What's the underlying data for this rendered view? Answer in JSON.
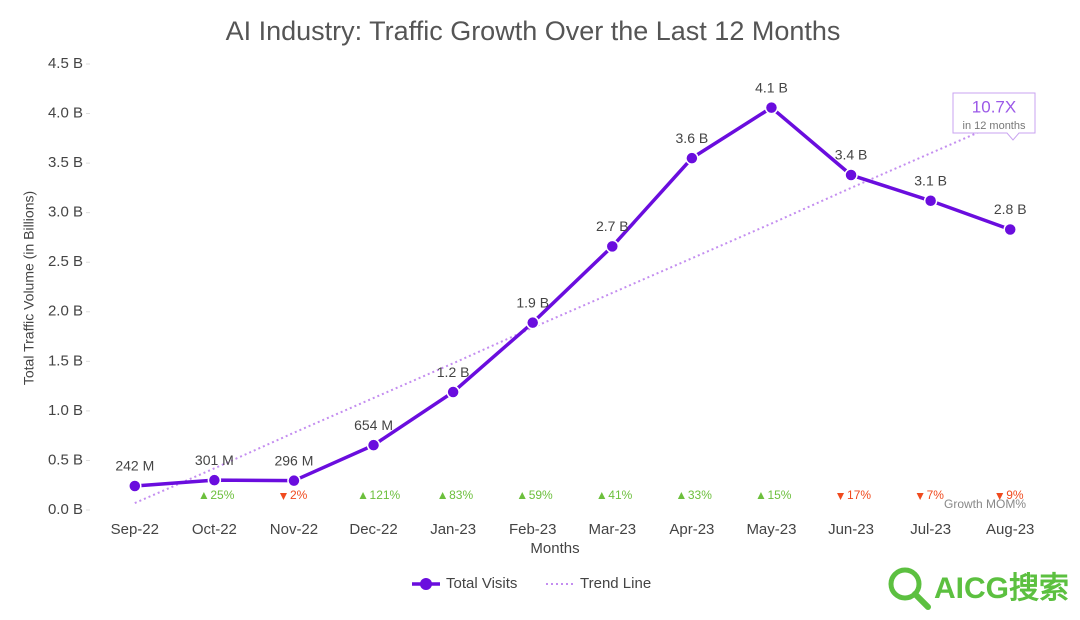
{
  "chart_data": {
    "type": "line",
    "title": "AI Industry: Traffic Growth Over the Last 12 Months",
    "x_label": "Months",
    "y_label": "Total Traffic Volume (in Billions)",
    "categories": [
      "Sep-22",
      "Oct-22",
      "Nov-22",
      "Dec-22",
      "Jan-23",
      "Feb-23",
      "Mar-23",
      "Apr-23",
      "May-23",
      "Jun-23",
      "Jul-23",
      "Aug-23"
    ],
    "series": [
      {
        "name": "Total Visits",
        "color": "#6a0dde",
        "values": [
          0.242,
          0.301,
          0.296,
          0.654,
          1.19,
          1.89,
          2.66,
          3.55,
          4.06,
          3.38,
          3.12,
          2.83
        ],
        "value_labels": [
          "242 M",
          "301 M",
          "296 M",
          "654 M",
          "1.2 B",
          "1.9 B",
          "2.7 B",
          "3.6 B",
          "4.1 B",
          "3.4 B",
          "3.1 B",
          "2.8 B"
        ]
      },
      {
        "name": "Trend Line",
        "color": "#c48ef0",
        "style": "dotted",
        "values": [
          0.07,
          0.42,
          0.78,
          1.13,
          1.48,
          1.84,
          2.19,
          2.54,
          2.89,
          3.25,
          3.6,
          3.95
        ]
      }
    ],
    "growth": {
      "label": "Growth MOM%",
      "values": [
        null,
        25,
        -2,
        121,
        83,
        59,
        41,
        33,
        15,
        -17,
        -7,
        -9
      ],
      "value_labels": [
        null,
        "25%",
        "2%",
        "121%",
        "83%",
        "59%",
        "41%",
        "33%",
        "15%",
        "17%",
        "7%",
        "9%"
      ],
      "up_color": "#6cbf3c",
      "down_color": "#f04a1e"
    },
    "annotation": {
      "text": "10.7X",
      "subtext": "in 12 months"
    },
    "ylim": [
      0,
      4.5
    ],
    "yticks": [
      {
        "value": 0,
        "label": "0.0 B"
      },
      {
        "value": 0.5,
        "label": "0.5 B"
      },
      {
        "value": 1,
        "label": "1.0 B"
      },
      {
        "value": 1.5,
        "label": "1.5 B"
      },
      {
        "value": 2,
        "label": "2.0 B"
      },
      {
        "value": 2.5,
        "label": "2.5 B"
      },
      {
        "value": 3,
        "label": "3.0 B"
      },
      {
        "value": 3.5,
        "label": "3.5 B"
      },
      {
        "value": 4,
        "label": "4.0 B"
      },
      {
        "value": 4.5,
        "label": "4.5 B"
      }
    ],
    "legend": "bottom",
    "watermark": "AICG搜索"
  }
}
